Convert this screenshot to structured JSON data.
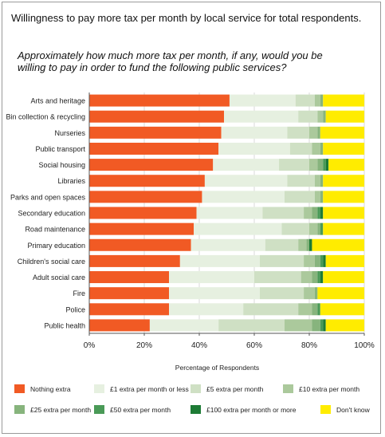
{
  "title": "Willingness to pay more tax per month by local service for total respondents.",
  "question": "Approximately how much more tax per month, if any, would you be willing to pay in order to fund the following public services?",
  "chart_data": {
    "type": "bar",
    "orientation": "horizontal",
    "stacked": true,
    "xlabel": "Percentage of Respondents",
    "xlim": [
      0,
      100
    ],
    "xticks": [
      "0%",
      "20%",
      "40%",
      "60%",
      "80%",
      "100%"
    ],
    "grid": true,
    "legend_position": "bottom",
    "categories": [
      "Arts and heritage",
      "Bin collection & recycling",
      "Nurseries",
      "Public transport",
      "Social housing",
      "Libraries",
      "Parks and open spaces",
      "Secondary education",
      "Road maintenance",
      "Primary education",
      "Children's social care",
      "Adult social care",
      "Fire",
      "Police",
      "Public health"
    ],
    "series": [
      {
        "name": "Nothing extra",
        "color": "#f15a24",
        "values": [
          51,
          49,
          48,
          47,
          45,
          42,
          41,
          39,
          38,
          37,
          33,
          29,
          29,
          29,
          22
        ]
      },
      {
        "name": "£1 extra per month or less",
        "color": "#e6f0e0",
        "values": [
          24,
          27,
          24,
          26,
          24,
          30,
          30,
          24,
          32,
          27,
          29,
          31,
          33,
          27,
          25
        ]
      },
      {
        "name": "£5 extra per month",
        "color": "#cfe0c4",
        "values": [
          7,
          7,
          8,
          8,
          11,
          10,
          11,
          15,
          10,
          12,
          16,
          17,
          16,
          20,
          24
        ]
      },
      {
        "name": "£10 extra per month",
        "color": "#abc99c",
        "values": [
          2,
          2,
          3,
          3,
          3,
          2,
          2,
          3,
          3,
          3,
          4,
          4,
          4,
          5,
          10
        ]
      },
      {
        "name": "£25 extra per month",
        "color": "#87b47d",
        "values": [
          1,
          1,
          1,
          1,
          2,
          1,
          1,
          2,
          1,
          1,
          2,
          2,
          1,
          2,
          3
        ]
      },
      {
        "name": "£50 extra per month",
        "color": "#4a9a57",
        "values": [
          0,
          0,
          0,
          0,
          1,
          0,
          0,
          1,
          1,
          0,
          1,
          1,
          0,
          1,
          1
        ]
      },
      {
        "name": "£100 extra per month or more",
        "color": "#1d7b35",
        "values": [
          0,
          0,
          0,
          0,
          1,
          0,
          0,
          1,
          0,
          1,
          1,
          1,
          0,
          0,
          1
        ]
      },
      {
        "name": "Don't know",
        "color": "#ffec00",
        "values": [
          15,
          14,
          16,
          15,
          13,
          15,
          15,
          15,
          15,
          19,
          14,
          15,
          17,
          16,
          14
        ]
      }
    ]
  }
}
